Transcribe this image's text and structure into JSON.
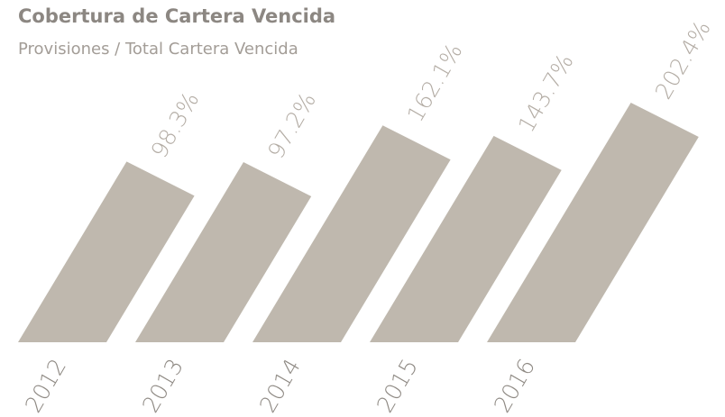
{
  "chart_data": {
    "type": "bar",
    "title": "Cobertura de Cartera Vencida",
    "subtitle": "Provisiones / Total Cartera Vencida",
    "categories": [
      "2012",
      "2013",
      "2014",
      "2015",
      "2016"
    ],
    "values": [
      98.3,
      97.2,
      162.1,
      143.7,
      202.4
    ],
    "value_labels": [
      "98.3%",
      "97.2%",
      "162.1%",
      "143.7%",
      "202.4%"
    ],
    "color": "#bfb8ae"
  }
}
